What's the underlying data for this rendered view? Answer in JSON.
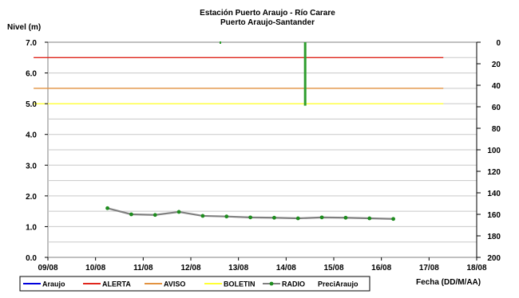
{
  "chart_data": {
    "type": "line",
    "title": "Estación Puerto Araujo - Río Carare",
    "subtitle": "Puerto Araujo-Santander",
    "ylabel": "Nivel (m)",
    "xlabel": "Fecha (DD/M/AA)",
    "x_ticks": [
      "09/08",
      "10/08",
      "11/08",
      "12/08",
      "13/08",
      "14/08",
      "15/08",
      "16/08",
      "17/08",
      "18/08"
    ],
    "xlim": [
      0,
      9
    ],
    "ylim": [
      0,
      7
    ],
    "y_ticks": [
      "0.0",
      "1.0",
      "2.0",
      "3.0",
      "4.0",
      "5.0",
      "6.0",
      "7.0"
    ],
    "y2lim": [
      0,
      200
    ],
    "y2_ticks": [
      "0",
      "20",
      "40",
      "60",
      "80",
      "100",
      "120",
      "140",
      "160",
      "180",
      "200"
    ],
    "y2_reversed": true,
    "grid": true,
    "legend_position": "bottom",
    "thresholds": [
      {
        "name": "ALERTA",
        "value": 6.5,
        "color": "#e0261c",
        "x": [
          -0.3,
          8.3
        ]
      },
      {
        "name": "AVISO",
        "value": 5.5,
        "color": "#e29240",
        "x": [
          -0.3,
          8.3
        ]
      },
      {
        "name": "BOLETIN",
        "value": 5.0,
        "color": "#ffff33",
        "x": [
          -0.3,
          8.3
        ]
      }
    ],
    "series": [
      {
        "name": "RADIO",
        "color": "#808080",
        "marker_color": "#1e8c1e",
        "x": [
          1.25,
          1.75,
          2.25,
          2.75,
          3.25,
          3.75,
          4.25,
          4.75,
          5.25,
          5.75,
          6.25,
          6.75,
          7.25
        ],
        "values": [
          1.6,
          1.4,
          1.38,
          1.48,
          1.35,
          1.33,
          1.3,
          1.29,
          1.27,
          1.3,
          1.29,
          1.27,
          1.25
        ]
      },
      {
        "name": "PreciAraujo",
        "color": "#2e9e2e",
        "x": [
          3.62,
          5.4
        ],
        "values": [
          0,
          59
        ],
        "axis": "right"
      }
    ],
    "legend": [
      {
        "name": "Araujo",
        "color": "#0000dd",
        "style": "line"
      },
      {
        "name": "ALERTA",
        "color": "#e0261c",
        "style": "line"
      },
      {
        "name": "AVISO",
        "color": "#e29240",
        "style": "line"
      },
      {
        "name": "BOLETIN",
        "color": "#ffff33",
        "style": "line"
      },
      {
        "name": "RADIO",
        "color": "#808080",
        "style": "line-marker",
        "marker_color": "#1e8c1e"
      },
      {
        "name": "PreciAraujo",
        "color": "#2e9e2e",
        "style": "none"
      }
    ]
  }
}
